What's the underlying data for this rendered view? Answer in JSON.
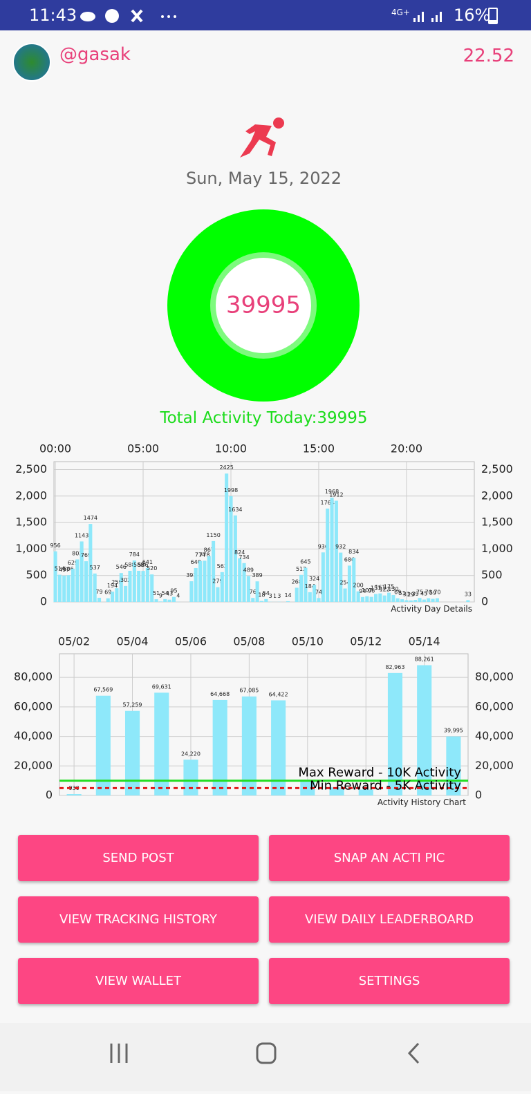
{
  "status_bar": {
    "time": "11:43",
    "network": "4G+",
    "battery": "16%"
  },
  "header": {
    "username": "@gasak",
    "balance": "22.52"
  },
  "date": "Sun, May 15, 2022",
  "activity": {
    "today": 39995,
    "total_label": "Total Activity Today:39995"
  },
  "charts": [
    {
      "type": "bar",
      "footer": "Activity Day Details",
      "color": "#8ee8fa",
      "x": [
        0,
        0.25,
        0.5,
        0.75,
        1,
        1.25,
        1.5,
        1.75,
        2,
        2.25,
        2.5,
        3,
        3.25,
        3.5,
        3.75,
        4,
        4.25,
        4.5,
        4.75,
        5,
        5.25,
        5.5,
        5.75,
        6,
        6.25,
        6.5,
        6.75,
        7,
        7.75,
        8,
        8.25,
        8.5,
        8.75,
        9,
        9.25,
        9.5,
        9.75,
        10,
        10.25,
        10.5,
        10.75,
        11,
        11.25,
        11.5,
        11.75,
        12,
        12.25,
        12.5,
        12.75,
        13.25,
        13.75,
        14,
        14.25,
        14.5,
        14.75,
        15,
        15.25,
        15.5,
        15.75,
        16,
        16.25,
        16.5,
        16.75,
        17,
        17.25,
        17.5,
        17.75,
        18,
        18.25,
        18.5,
        18.75,
        19,
        19.25,
        19.5,
        19.75,
        20,
        20.25,
        20.5,
        20.75,
        21,
        21.25,
        21.5,
        21.75,
        23.5
      ],
      "values": [
        956,
        514,
        497,
        506,
        629,
        803,
        1143,
        769,
        1474,
        537,
        79,
        69,
        194,
        259,
        546,
        302,
        588,
        784,
        588,
        586,
        641,
        520,
        51,
        9,
        54,
        43,
        95,
        4,
        391,
        640,
        774,
        778,
        867,
        1150,
        279,
        563,
        2425,
        1998,
        1634,
        824,
        734,
        489,
        76,
        389,
        18,
        54,
        3,
        1,
        3,
        14,
        268,
        512,
        645,
        184,
        324,
        74,
        936,
        1764,
        1968,
        1912,
        932,
        254,
        686,
        834,
        200,
        94,
        107,
        96,
        151,
        161,
        122,
        175,
        130,
        69,
        51,
        33,
        29,
        39,
        75,
        45,
        70,
        59,
        70,
        33
      ],
      "xlim": [
        -0.08,
        23.86
      ],
      "xticks": [
        {
          "value": 0,
          "label": "00:00"
        },
        {
          "value": 5,
          "label": "05:00"
        },
        {
          "value": 10,
          "label": "10:00"
        },
        {
          "value": 15,
          "label": "15:00"
        },
        {
          "value": 20,
          "label": "20:00"
        }
      ],
      "ylim": [
        0,
        2650
      ],
      "yticks": [
        0,
        500,
        {
          "value": 1000,
          "label": "1,000"
        },
        {
          "value": 1500,
          "label": "1,500"
        },
        {
          "value": 2000,
          "label": "2,000"
        },
        {
          "value": 2500,
          "label": "2,500"
        }
      ],
      "grid": true
    },
    {
      "type": "bar",
      "footer": "Activity History Chart",
      "color": "#8ee8fa",
      "categories": [
        "05/02",
        null,
        "05/04",
        null,
        "05/06",
        null,
        "05/08",
        null,
        "05/10",
        null,
        "05/12",
        null,
        "05/14",
        null
      ],
      "values": [
        930,
        67569,
        57259,
        69631,
        24220,
        64668,
        67085,
        64422,
        10200,
        5500,
        4000,
        82963,
        88261,
        39995
      ],
      "value_labels": [
        "930",
        "67,569",
        "57,259",
        "69,631",
        "24,220",
        "64,668",
        "67,085",
        "64,422",
        null,
        null,
        null,
        "82,963",
        "88,261",
        "39,995"
      ],
      "ylim": [
        0,
        96000
      ],
      "yticks": [
        0,
        {
          "value": 20000,
          "label": "20,000"
        },
        {
          "value": 40000,
          "label": "40,000"
        },
        {
          "value": 60000,
          "label": "60,000"
        },
        {
          "value": 80000,
          "label": "80,000"
        }
      ],
      "grid": true,
      "reference_lines": [
        {
          "value": 10000,
          "label": "Max Reward - 10K Activity",
          "color": "#22dd22"
        },
        {
          "value": 5000,
          "label": "Min Reward - 5K Activity",
          "color": "#e01b1b",
          "dashed": true
        }
      ]
    }
  ],
  "buttons": [
    "SEND POST",
    "SNAP AN ACTI PIC",
    "VIEW TRACKING HISTORY",
    "VIEW DAILY LEADERBOARD",
    "VIEW WALLET",
    "SETTINGS"
  ]
}
